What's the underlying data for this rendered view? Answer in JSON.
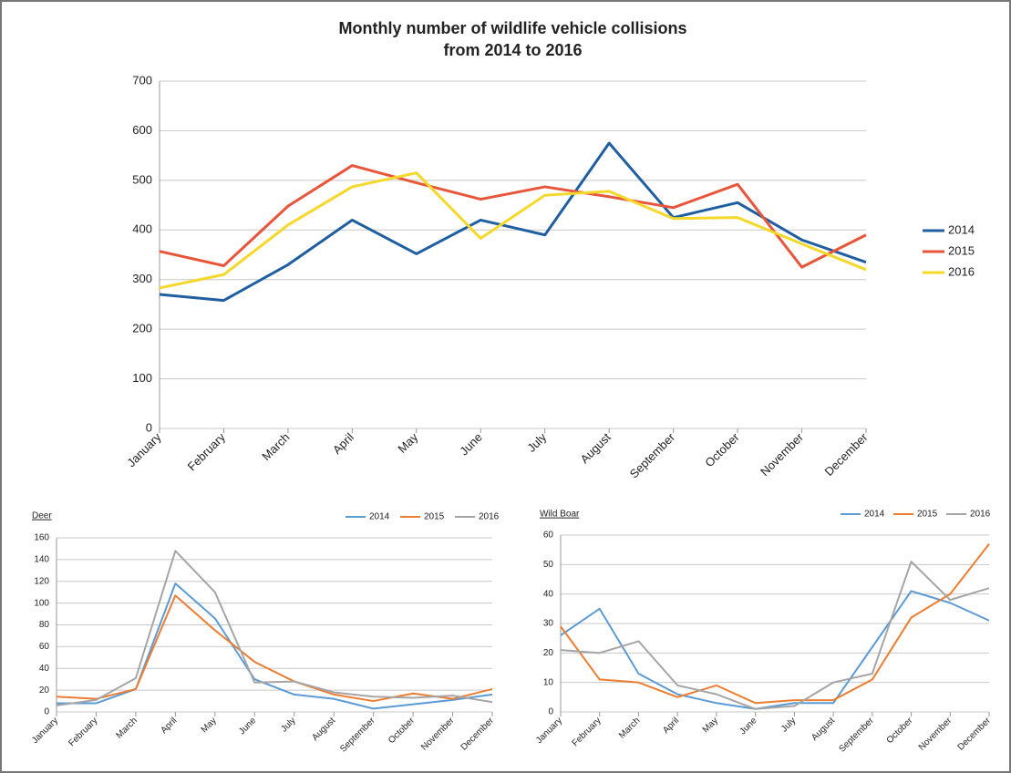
{
  "chart_data": [
    {
      "type": "line",
      "title": [
        "Monthly number of wildlife vehicle collisions",
        "from 2014 to 2016"
      ],
      "categories": [
        "January",
        "February",
        "March",
        "April",
        "May",
        "June",
        "July",
        "August",
        "September",
        "October",
        "November",
        "December"
      ],
      "series": [
        {
          "name": "2014",
          "color": "#1f5fa0",
          "values": [
            270,
            258,
            330,
            420,
            352,
            420,
            390,
            575,
            425,
            455,
            380,
            335
          ]
        },
        {
          "name": "2015",
          "color": "#e8553a",
          "values": [
            357,
            328,
            448,
            530,
            495,
            462,
            487,
            467,
            445,
            492,
            325,
            390
          ]
        },
        {
          "name": "2016",
          "color": "#f5d82a",
          "values": [
            283,
            310,
            410,
            487,
            515,
            383,
            470,
            478,
            423,
            425,
            372,
            320
          ]
        }
      ],
      "ylim": [
        0,
        700
      ],
      "yticks": [
        0,
        100,
        200,
        300,
        400,
        500,
        600,
        700
      ],
      "grid": true,
      "legend": "right"
    },
    {
      "type": "line",
      "title": "Deer",
      "categories": [
        "January",
        "February",
        "March",
        "April",
        "May",
        "June",
        "July",
        "August",
        "September",
        "October",
        "November",
        "December"
      ],
      "series": [
        {
          "name": "2014",
          "color": "#5b9bd5",
          "values": [
            8,
            8,
            21,
            118,
            86,
            30,
            16,
            12,
            3,
            7,
            11,
            16
          ]
        },
        {
          "name": "2015",
          "color": "#ed7d31",
          "values": [
            14,
            12,
            21,
            107,
            75,
            46,
            28,
            16,
            10,
            17,
            12,
            21
          ]
        },
        {
          "name": "2016",
          "color": "#a5a5a5",
          "values": [
            6,
            11,
            31,
            148,
            110,
            27,
            28,
            18,
            14,
            13,
            15,
            9
          ]
        }
      ],
      "ylim": [
        0,
        160
      ],
      "yticks": [
        0,
        20,
        40,
        60,
        80,
        100,
        120,
        140,
        160
      ],
      "grid": true,
      "legend": "top-right"
    },
    {
      "type": "line",
      "title": "Wild Boar",
      "categories": [
        "January",
        "February",
        "March",
        "April",
        "May",
        "June",
        "July",
        "August",
        "September",
        "October",
        "November",
        "December"
      ],
      "series": [
        {
          "name": "2014",
          "color": "#5b9bd5",
          "values": [
            26,
            35,
            13,
            6,
            3,
            1,
            3,
            3,
            22,
            41,
            37,
            31
          ]
        },
        {
          "name": "2015",
          "color": "#ed7d31",
          "values": [
            29,
            11,
            10,
            5,
            9,
            3,
            4,
            4,
            11,
            32,
            40,
            57
          ]
        },
        {
          "name": "2016",
          "color": "#a5a5a5",
          "values": [
            21,
            20,
            24,
            9,
            6,
            1,
            2,
            10,
            13,
            51,
            38,
            42
          ]
        }
      ],
      "ylim": [
        0,
        60
      ],
      "yticks": [
        0,
        10,
        20,
        30,
        40,
        50,
        60
      ],
      "grid": true,
      "legend": "top-right"
    }
  ]
}
